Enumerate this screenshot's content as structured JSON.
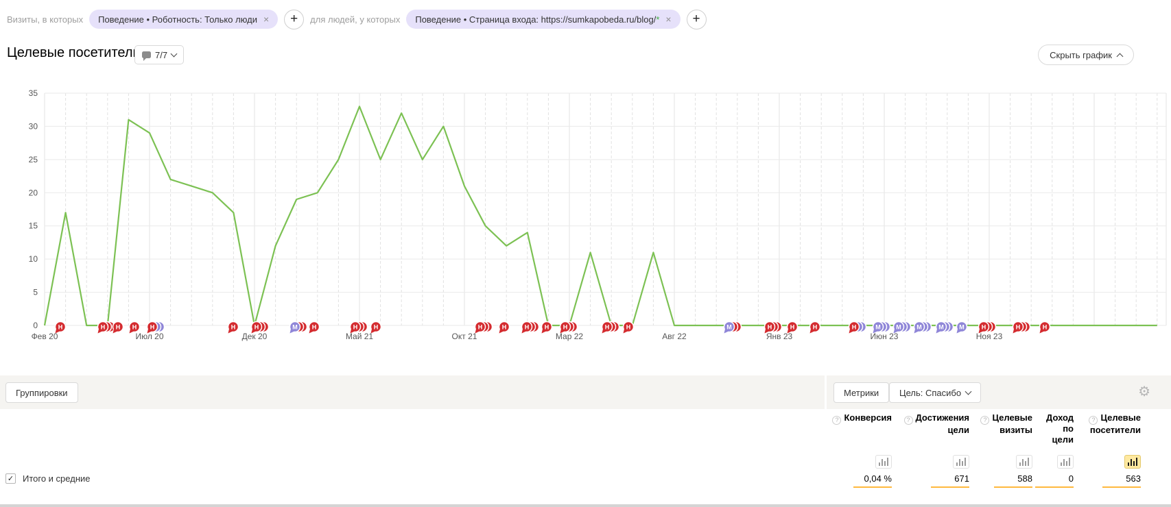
{
  "filter_bar": {
    "visits_label": "Визиты, в которых",
    "people_label": "для людей, у которых",
    "add_glyph": "+",
    "close_glyph": "×",
    "chips": [
      {
        "text": "Поведение • Роботность: Только люди"
      },
      {
        "text": "Поведение • Страница входа: https://sumkapobeda.ru/blog/",
        "star": "*"
      }
    ]
  },
  "header": {
    "title": "Целевые посетители",
    "comments_count": "7/7",
    "hide_chart_label": "Скрыть график"
  },
  "chart_data": {
    "type": "line",
    "title": "Целевые посетители",
    "series_color": "#7cc153",
    "grid": true,
    "ylim": [
      0,
      35
    ],
    "y_ticks": [
      0,
      5,
      10,
      15,
      20,
      25,
      30,
      35
    ],
    "x_tick_labels": [
      "Фев 20",
      "Июл 20",
      "Дек 20",
      "Май 21",
      "Окт 21",
      "Мар 22",
      "Авг 22",
      "Янв 23",
      "Июн 23",
      "Ноя 23"
    ],
    "x": [
      "Фев 20",
      "Мар 20",
      "Апр 20",
      "Май 20",
      "Июн 20",
      "Июл 20",
      "Авг 20",
      "Сен 20",
      "Окт 20",
      "Ноя 20",
      "Дек 20",
      "Янв 21",
      "Фев 21",
      "Мар 21",
      "Апр 21",
      "Май 21",
      "Июн 21",
      "Июл 21",
      "Авг 21",
      "Сен 21",
      "Окт 21",
      "Ноя 21",
      "Дек 21",
      "Янв 22",
      "Фев 22",
      "Мар 22",
      "Апр 22",
      "Май 22",
      "Июн 22",
      "Июл 22",
      "Авг 22",
      "Сен 22",
      "Окт 22",
      "Ноя 22",
      "Дек 22",
      "Янв 23",
      "Фев 23",
      "Мар 23",
      "Апр 23",
      "Май 23",
      "Июн 23",
      "Июл 23",
      "Авг 23",
      "Сен 23",
      "Окт 23",
      "Ноя 23",
      "Дек 23",
      "Янв 24",
      "Фев 24",
      "Мар 24",
      "Апр 24",
      "Май 24",
      "Июн 24",
      "Июл 24"
    ],
    "values": [
      0,
      17,
      0,
      0,
      31,
      29,
      22,
      21,
      20,
      17,
      0,
      12,
      19,
      20,
      25,
      33,
      25,
      32,
      25,
      30,
      21,
      15,
      12,
      14,
      0,
      0,
      11,
      0,
      0,
      11,
      0,
      0,
      0,
      0,
      0,
      0,
      0,
      0,
      0,
      0,
      0,
      0,
      0,
      0,
      0,
      0,
      0,
      0,
      0,
      0,
      0,
      0,
      0,
      0
    ],
    "annotations": {
      "red_letter": "Н",
      "purple_letter": "М",
      "red_color": "#d42b2f",
      "purple_color": "#8f86d8",
      "markers": [
        [
          88,
          "r",
          0
        ],
        [
          150,
          "r",
          2
        ],
        [
          172,
          "r",
          0
        ],
        [
          196,
          "r",
          0
        ],
        [
          222,
          "r",
          2,
          "p"
        ],
        [
          340,
          "r",
          0
        ],
        [
          374,
          "r",
          2
        ],
        [
          430,
          "p",
          2,
          "r"
        ],
        [
          458,
          "r",
          0
        ],
        [
          518,
          "r",
          2
        ],
        [
          548,
          "r",
          0
        ],
        [
          700,
          "r",
          2
        ],
        [
          735,
          "r",
          0
        ],
        [
          768,
          "r",
          2
        ],
        [
          797,
          "r",
          0
        ],
        [
          824,
          "r",
          2
        ],
        [
          885,
          "r",
          2
        ],
        [
          916,
          "r",
          0
        ],
        [
          1063,
          "p",
          2,
          "r"
        ],
        [
          1122,
          "r",
          2
        ],
        [
          1155,
          "r",
          0
        ],
        [
          1188,
          "r",
          0
        ],
        [
          1245,
          "r",
          2,
          "p"
        ],
        [
          1280,
          "p",
          2
        ],
        [
          1310,
          "p",
          2
        ],
        [
          1340,
          "p",
          2
        ],
        [
          1372,
          "p",
          2
        ],
        [
          1402,
          "p",
          0
        ],
        [
          1434,
          "r",
          2
        ],
        [
          1484,
          "r",
          2
        ],
        [
          1523,
          "r",
          0
        ]
      ]
    }
  },
  "band": {
    "groupings_label": "Группировки",
    "metrics_label": "Метрики",
    "goal_label": "Цель: Спасибо"
  },
  "table": {
    "columns": [
      {
        "lines": [
          "Конверсия"
        ],
        "help": true,
        "selected": false
      },
      {
        "lines": [
          "Достижения",
          "цели"
        ],
        "help": true,
        "selected": false
      },
      {
        "lines": [
          "Целевые",
          "визиты"
        ],
        "help": true,
        "selected": false
      },
      {
        "lines": [
          "Доход",
          "по",
          "цели"
        ],
        "help": false,
        "selected": false
      },
      {
        "lines": [
          "Целевые",
          "посетители"
        ],
        "help": true,
        "selected": true
      }
    ],
    "totals": {
      "label": "Итого и средние",
      "checkbox_glyph": "✓",
      "values": [
        "0,04 %",
        "671",
        "588",
        "0",
        "563"
      ]
    }
  }
}
